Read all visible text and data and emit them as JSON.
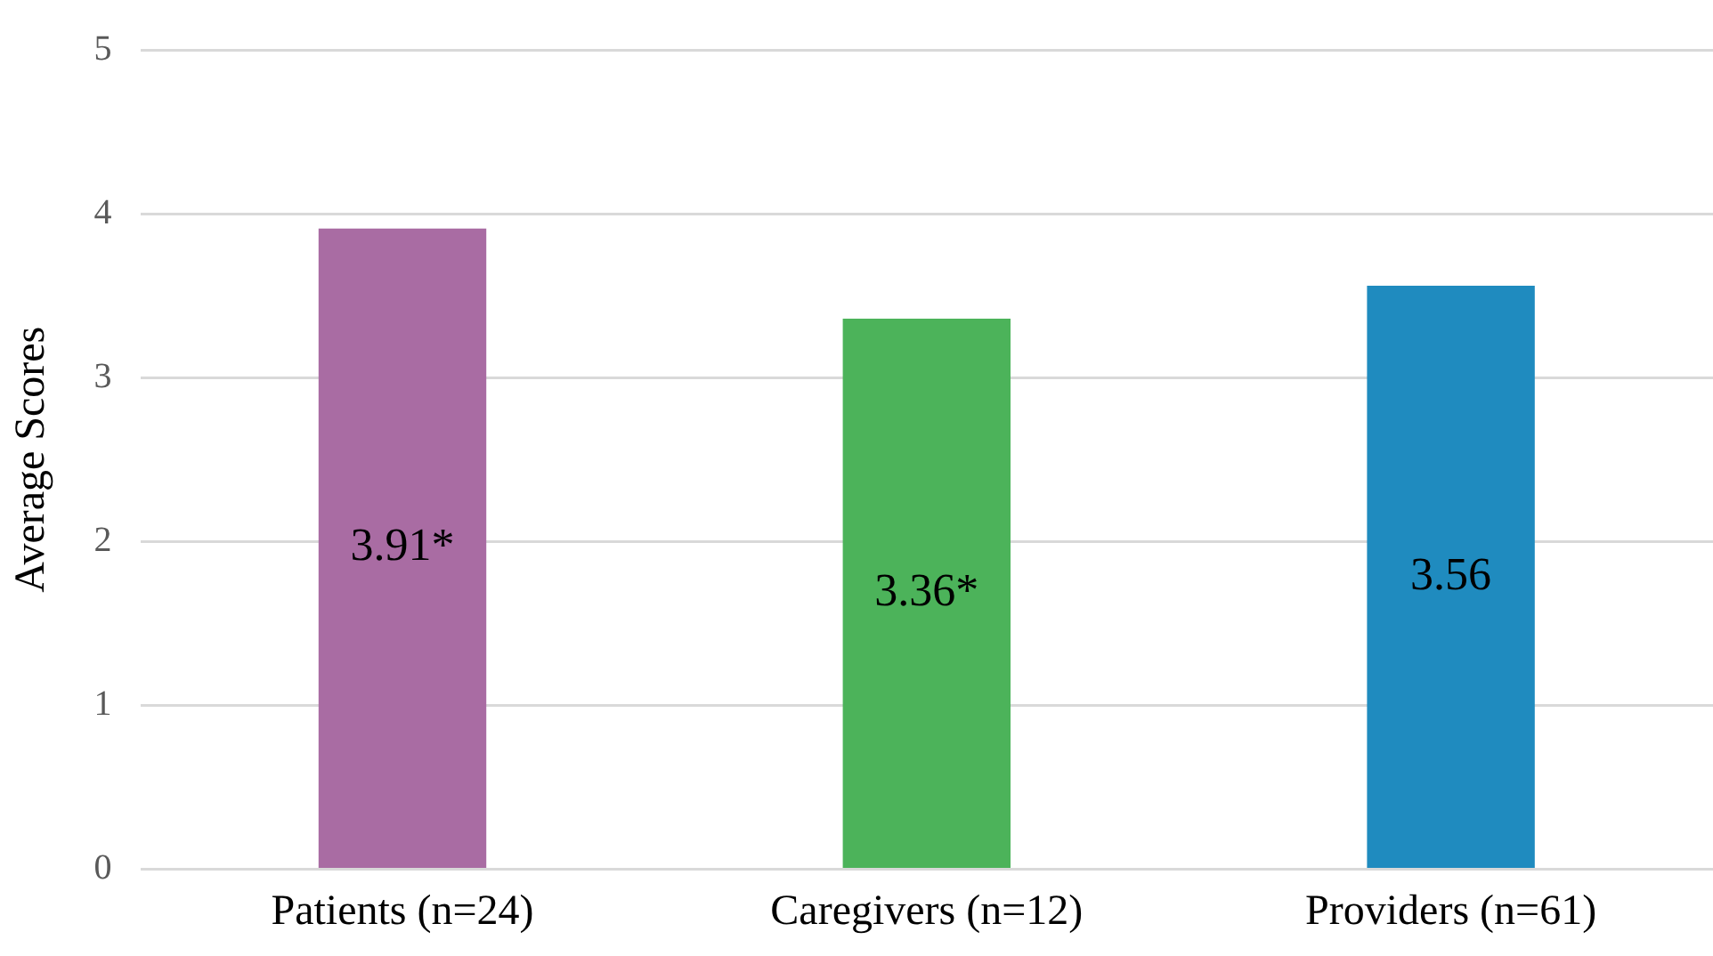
{
  "chart_data": {
    "type": "bar",
    "ylabel": "Average Scores",
    "categories": [
      "Patients (n=24)",
      "Caregivers (n=12)",
      "Providers (n=61)"
    ],
    "values": [
      3.91,
      3.36,
      3.56
    ],
    "colors": [
      "#a96ca3",
      "#4cb35a",
      "#1f8bbf"
    ],
    "value_labels": [
      "3.91*",
      "3.36*",
      "3.56"
    ],
    "ylim": [
      0,
      5
    ],
    "yticks": [
      0,
      1,
      2,
      3,
      4,
      5
    ],
    "grid": "y",
    "legend": false
  }
}
